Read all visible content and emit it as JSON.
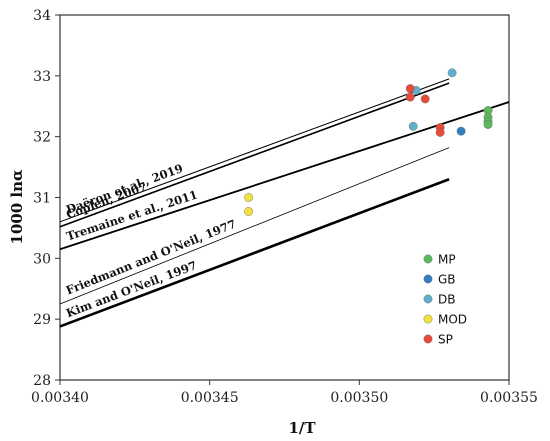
{
  "chart_data": {
    "type": "scatter",
    "title": "",
    "xlabel": "1/T",
    "ylabel": "1000 lnα",
    "xlim": [
      0.0034,
      0.00355
    ],
    "ylim": [
      28,
      34
    ],
    "xticks": [
      "0.00340",
      "0.00345",
      "0.00350",
      "0.00355"
    ],
    "yticks": [
      "28",
      "29",
      "30",
      "31",
      "32",
      "33",
      "34"
    ],
    "xtick_values": [
      0.0034,
      0.00345,
      0.0035,
      0.00355
    ],
    "ytick_values": [
      28,
      29,
      30,
      31,
      32,
      33,
      34
    ],
    "lines": [
      {
        "name": "Daëron et al., 2019",
        "x": [
          0.0034,
          0.00353
        ],
        "y": [
          30.6,
          32.95
        ],
        "width": 1.0
      },
      {
        "name": "Coplen, 2007",
        "x": [
          0.0034,
          0.00353
        ],
        "y": [
          30.52,
          32.88
        ],
        "width": 1.6
      },
      {
        "name": "Tremaine et al., 2011",
        "x": [
          0.0034,
          0.00355
        ],
        "y": [
          30.15,
          32.57
        ],
        "width": 1.8
      },
      {
        "name": "Friedmann and O'Neil, 1977",
        "x": [
          0.0034,
          0.00353
        ],
        "y": [
          29.25,
          31.82
        ],
        "width": 0.8
      },
      {
        "name": "Kim and O'Neil, 1997",
        "x": [
          0.0034,
          0.00353
        ],
        "y": [
          28.88,
          31.3
        ],
        "width": 2.6
      }
    ],
    "series": [
      {
        "name": "MP",
        "color": "#5cb85c",
        "x": [
          0.003543,
          0.003543,
          0.003543,
          0.003543
        ],
        "y": [
          32.43,
          32.32,
          32.25,
          32.2
        ]
      },
      {
        "name": "GB",
        "color": "#2f7fc1",
        "x": [
          0.003534
        ],
        "y": [
          32.09
        ]
      },
      {
        "name": "DB",
        "color": "#5fb0cc",
        "x": [
          0.003531,
          0.003519,
          0.003518
        ],
        "y": [
          33.05,
          32.76,
          32.17
        ]
      },
      {
        "name": "MOD",
        "color": "#f0e040",
        "x": [
          0.003463,
          0.003463
        ],
        "y": [
          31.0,
          30.77
        ]
      },
      {
        "name": "SP",
        "color": "#e84a3c",
        "x": [
          0.003517,
          0.003517,
          0.003522,
          0.003527,
          0.003527
        ],
        "y": [
          32.79,
          32.65,
          32.62,
          32.15,
          32.07
        ]
      }
    ],
    "legend_position": "bottom-right",
    "grid": false
  }
}
